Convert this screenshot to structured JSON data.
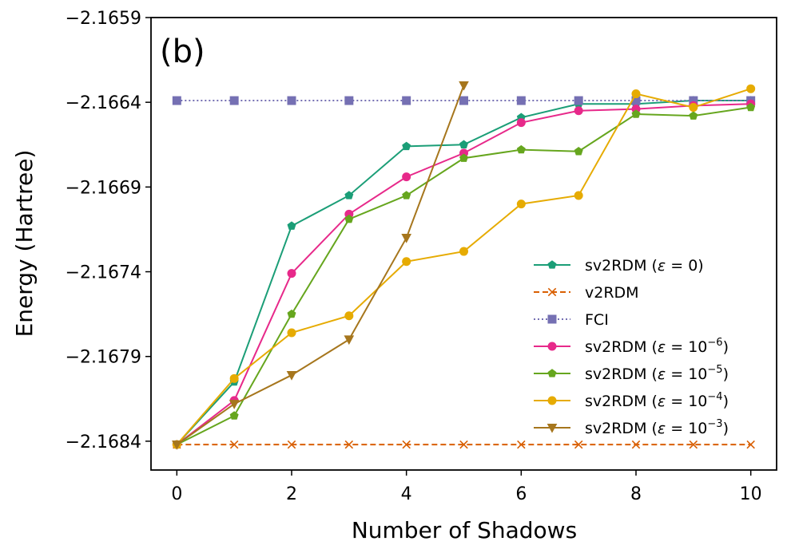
{
  "chart_data": {
    "type": "line",
    "panel_label": "(b)",
    "xlabel": "Number of Shadows",
    "ylabel": "Energy (Hartree)",
    "xlim": [
      -0.45,
      10.45
    ],
    "ylim": [
      -2.16857,
      -2.1659
    ],
    "xticks": [
      0,
      2,
      4,
      6,
      8,
      10
    ],
    "xtick_labels": [
      "0",
      "2",
      "4",
      "6",
      "8",
      "10"
    ],
    "yticks": [
      -2.1684,
      -2.1679,
      -2.1674,
      -2.1669,
      -2.1664,
      -2.1659
    ],
    "ytick_labels": [
      "−2.1684",
      "−2.1679",
      "−2.1674",
      "−2.1669",
      "−2.1664",
      "−2.1659"
    ],
    "legend_position": "lower-right",
    "series": [
      {
        "name": "sv2RDM (ε = 0)",
        "legend": {
          "base": "sv2RDM (",
          "eps": "ε",
          "rest": " = 0",
          "sup": "",
          "close": ")"
        },
        "color": "#1b9e77",
        "marker": "pentagon",
        "linestyle": "solid",
        "x": [
          0,
          1,
          2,
          3,
          4,
          5,
          6,
          7,
          8,
          9,
          10
        ],
        "y": [
          -2.16842,
          -2.16805,
          -2.16713,
          -2.16695,
          -2.16666,
          -2.16665,
          -2.16649,
          -2.16641,
          -2.16641,
          -2.16639,
          -2.16639
        ]
      },
      {
        "name": "v2RDM",
        "legend": {
          "base": "v2RDM",
          "eps": "",
          "rest": "",
          "sup": "",
          "close": ""
        },
        "color": "#d95f02",
        "marker": "x",
        "linestyle": "dashed",
        "x": [
          0,
          1,
          2,
          3,
          4,
          5,
          6,
          7,
          8,
          9,
          10
        ],
        "y": [
          -2.16842,
          -2.16842,
          -2.16842,
          -2.16842,
          -2.16842,
          -2.16842,
          -2.16842,
          -2.16842,
          -2.16842,
          -2.16842,
          -2.16842
        ]
      },
      {
        "name": "FCI",
        "legend": {
          "base": "FCI",
          "eps": "",
          "rest": "",
          "sup": "",
          "close": ""
        },
        "color": "#7570b3",
        "marker": "square",
        "linestyle": "dotted",
        "x": [
          0,
          1,
          2,
          3,
          4,
          5,
          6,
          7,
          8,
          9,
          10
        ],
        "y": [
          -2.16639,
          -2.16639,
          -2.16639,
          -2.16639,
          -2.16639,
          -2.16639,
          -2.16639,
          -2.16639,
          -2.16639,
          -2.16639,
          -2.16639
        ]
      },
      {
        "name": "sv2RDM (ε = 10⁻⁶)",
        "legend": {
          "base": "sv2RDM (",
          "eps": "ε",
          "rest": " = 10",
          "sup": "−6",
          "close": ")"
        },
        "color": "#e7298a",
        "marker": "circle",
        "linestyle": "solid",
        "x": [
          0,
          1,
          2,
          3,
          4,
          5,
          6,
          7,
          8,
          9,
          10
        ],
        "y": [
          -2.16842,
          -2.16816,
          -2.16741,
          -2.16706,
          -2.16684,
          -2.1667,
          -2.16652,
          -2.16645,
          -2.16644,
          -2.16642,
          -2.16641
        ]
      },
      {
        "name": "sv2RDM (ε = 10⁻⁵)",
        "legend": {
          "base": "sv2RDM (",
          "eps": "ε",
          "rest": " = 10",
          "sup": "−5",
          "close": ")"
        },
        "color": "#66a61e",
        "marker": "pentagon",
        "linestyle": "solid",
        "x": [
          0,
          1,
          2,
          3,
          4,
          5,
          6,
          7,
          8,
          9,
          10
        ],
        "y": [
          -2.16842,
          -2.16825,
          -2.16765,
          -2.16709,
          -2.16695,
          -2.16673,
          -2.16668,
          -2.16669,
          -2.16647,
          -2.16648,
          -2.16643
        ]
      },
      {
        "name": "sv2RDM (ε = 10⁻⁴)",
        "legend": {
          "base": "sv2RDM (",
          "eps": "ε",
          "rest": " = 10",
          "sup": "−4",
          "close": ")"
        },
        "color": "#e6ab02",
        "marker": "circle",
        "linestyle": "solid",
        "x": [
          0,
          1,
          2,
          3,
          4,
          5,
          6,
          7,
          8,
          9,
          10
        ],
        "y": [
          -2.16842,
          -2.16803,
          -2.16776,
          -2.16766,
          -2.16734,
          -2.16728,
          -2.167,
          -2.16695,
          -2.16635,
          -2.16643,
          -2.16632
        ]
      },
      {
        "name": "sv2RDM (ε = 10⁻³)",
        "legend": {
          "base": "sv2RDM (",
          "eps": "ε",
          "rest": " = 10",
          "sup": "−3",
          "close": ")"
        },
        "color": "#a6761d",
        "marker": "triangle-down",
        "linestyle": "solid",
        "x": [
          0,
          1,
          2,
          3,
          4,
          5
        ],
        "y": [
          -2.16842,
          -2.16818,
          -2.16801,
          -2.1678,
          -2.1672,
          -2.1663
        ]
      }
    ]
  }
}
